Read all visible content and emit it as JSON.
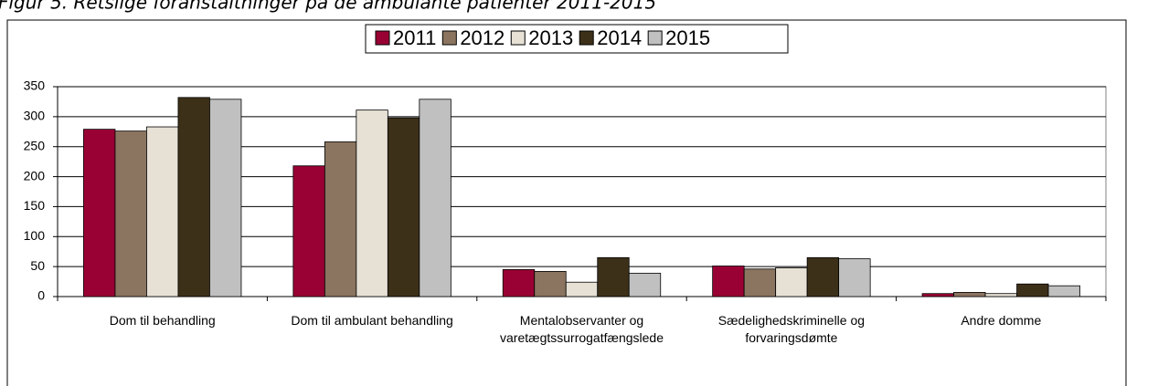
{
  "chart_data": {
    "type": "bar",
    "title": "Figur 5. Retslige foranstaltninger på de ambulante patienter 2011-2015",
    "categories": [
      "Dom til behandling",
      "Dom til ambulant behandling",
      "Mentalobservanter og\nvaretægtssurrogatfængslede",
      "Sædelighedskriminelle og\nforvaringsdømte",
      "Andre domme"
    ],
    "series": [
      {
        "name": "2011",
        "color": "#990033",
        "values": [
          279,
          218,
          45,
          51,
          5
        ]
      },
      {
        "name": "2012",
        "color": "#8b7560",
        "values": [
          276,
          258,
          42,
          46,
          7
        ]
      },
      {
        "name": "2013",
        "color": "#e6e0d5",
        "values": [
          283,
          311,
          24,
          48,
          5
        ]
      },
      {
        "name": "2014",
        "color": "#3d3019",
        "values": [
          332,
          298,
          65,
          65,
          21
        ]
      },
      {
        "name": "2015",
        "color": "#c0c0c0",
        "values": [
          329,
          329,
          39,
          63,
          18
        ]
      }
    ],
    "ylim": [
      0,
      350
    ],
    "yticks": [
      0,
      50,
      100,
      150,
      200,
      250,
      300,
      350
    ],
    "grid": true,
    "legend": "top"
  }
}
